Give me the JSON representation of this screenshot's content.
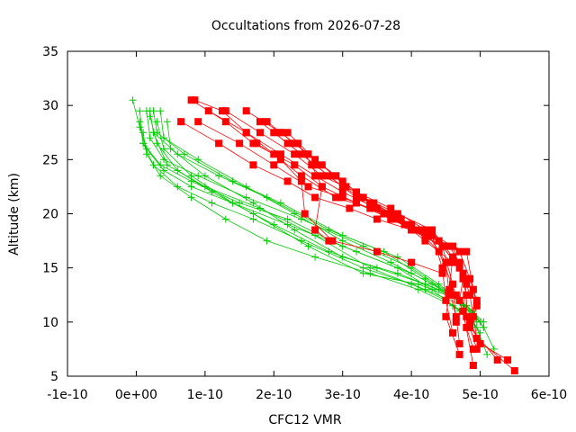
{
  "chart_data": {
    "type": "line",
    "title": "Occultations from 2026-07-28",
    "xlabel": "CFC12 VMR",
    "ylabel": "Altitude (km)",
    "xlim": [
      -1e-10,
      6e-10
    ],
    "ylim": [
      5,
      35
    ],
    "x_ticks": [
      -1e-10,
      0,
      1e-10,
      2e-10,
      3e-10,
      4e-10,
      5e-10,
      6e-10
    ],
    "x_tick_labels": [
      "-1e-10",
      "0e+00",
      "1e-10",
      "2e-10",
      "3e-10",
      "4e-10",
      "5e-10",
      "6e-10"
    ],
    "y_ticks": [
      5,
      10,
      15,
      20,
      25,
      30,
      35
    ],
    "y_tick_labels": [
      "5",
      "10",
      "15",
      "20",
      "25",
      "30",
      "35"
    ],
    "grid": false,
    "colors": {
      "red": "#ff0000",
      "green": "#00cc00"
    },
    "series": [
      {
        "color": "red",
        "marker": "square",
        "x": [
          8e-11,
          1.3e-10,
          1.7e-10,
          2.3e-10,
          2.7e-10,
          3.2e-10,
          3.7e-10,
          4.2e-10,
          4.7e-10,
          4.85e-10,
          4.95e-10,
          4.85e-10,
          5e-10,
          5.4e-10
        ],
        "y": [
          30.5,
          28.5,
          26.5,
          24.5,
          22.5,
          21.0,
          19.5,
          18.0,
          16.5,
          14.0,
          12.0,
          10.0,
          8.0,
          6.5
        ]
      },
      {
        "color": "red",
        "marker": "square",
        "x": [
          8.5e-11,
          1.25e-10,
          1.6e-10,
          2e-10,
          2.4e-10,
          2.9e-10,
          3.4e-10,
          3.9e-10,
          4.45e-10,
          4.75e-10,
          4.85e-10,
          4.9e-10,
          4.95e-10,
          5.5e-10
        ],
        "y": [
          30.5,
          29.5,
          27.5,
          25.5,
          23.5,
          21.5,
          20.5,
          19.0,
          17.0,
          14.5,
          12.5,
          10.5,
          8.5,
          5.5
        ]
      },
      {
        "color": "red",
        "marker": "square",
        "x": [
          1.05e-10,
          1.6e-10,
          2.1e-10,
          2.6e-10,
          3e-10,
          3.5e-10,
          4e-10,
          4.4e-10,
          4.8e-10,
          4.9e-10,
          4.95e-10,
          4.85e-10,
          5.25e-10
        ],
        "y": [
          29.5,
          27.5,
          25.5,
          23.5,
          22.0,
          20.5,
          19.0,
          17.5,
          16.5,
          13.0,
          11.5,
          9.5,
          6.5
        ]
      },
      {
        "color": "red",
        "marker": "square",
        "x": [
          6.5e-11,
          1.2e-10,
          1.7e-10,
          2.2e-10,
          2.6e-10,
          3.1e-10,
          3.5e-10,
          4e-10,
          4.45e-10,
          4.7e-10,
          4.8e-10,
          4.8e-10,
          4.95e-10
        ],
        "y": [
          28.5,
          26.5,
          24.5,
          23.0,
          21.5,
          20.5,
          19.5,
          18.5,
          17.0,
          15.0,
          12.5,
          10.5,
          7.5
        ]
      },
      {
        "color": "red",
        "marker": "square",
        "x": [
          9e-11,
          1.5e-10,
          2e-10,
          2.5e-10,
          3e-10,
          3.6e-10,
          4.1e-10,
          4.55e-10,
          4.7e-10,
          4.8e-10,
          4.75e-10,
          4.9e-10
        ],
        "y": [
          28.5,
          26.5,
          24.5,
          22.5,
          21.5,
          20.0,
          18.5,
          17.0,
          15.5,
          13.5,
          11.0,
          6.0
        ]
      },
      {
        "color": "red",
        "marker": "square",
        "x": [
          1.3e-10,
          1.8e-10,
          2.3e-10,
          2.7e-10,
          3.2e-10,
          3.7e-10,
          4.2e-10,
          4.6e-10,
          4.75e-10,
          4.7e-10,
          4.8e-10,
          4.9e-10
        ],
        "y": [
          29.5,
          27.5,
          25.5,
          23.5,
          22.0,
          20.5,
          18.5,
          17.0,
          14.0,
          12.0,
          9.5,
          7.5
        ]
      },
      {
        "color": "red",
        "marker": "square",
        "x": [
          1.6e-10,
          2.1e-10,
          2.5e-10,
          2.9e-10,
          3.3e-10,
          3.8e-10,
          4.3e-10,
          4.6e-10,
          4.55e-10,
          4.65e-10,
          4.7e-10
        ],
        "y": [
          29.5,
          27.5,
          25.5,
          23.5,
          21.5,
          20.0,
          18.5,
          16.0,
          13.0,
          10.5,
          8.0
        ]
      },
      {
        "color": "red",
        "marker": "square",
        "x": [
          1.8e-10,
          2.2e-10,
          2.6e-10,
          3e-10,
          3.4e-10,
          3.8e-10,
          4.25e-10,
          4.5e-10,
          4.55e-10,
          4.5e-10,
          4.7e-10
        ],
        "y": [
          28.5,
          26.5,
          24.5,
          22.5,
          21.0,
          19.5,
          18.0,
          15.5,
          12.5,
          10.5,
          7.0
        ]
      },
      {
        "color": "red",
        "marker": "square",
        "x": [
          1.9e-10,
          2.3e-10,
          2.7e-10,
          3.05e-10,
          3.45e-10,
          3.85e-10,
          4.3e-10,
          4.45e-10,
          4.5e-10,
          4.6e-10
        ],
        "y": [
          28.5,
          26.5,
          24.5,
          22.5,
          21.0,
          19.5,
          18.0,
          15.0,
          12.0,
          9.0
        ]
      },
      {
        "color": "red",
        "marker": "square",
        "x": [
          2e-10,
          2.4e-10,
          2.8e-10,
          3.2e-10,
          3.6e-10,
          4e-10,
          4.45e-10,
          4.6e-10,
          4.65e-10
        ],
        "y": [
          27.5,
          25.5,
          23.5,
          21.5,
          20.0,
          18.5,
          17.0,
          13.5,
          10.0
        ]
      },
      {
        "color": "red",
        "marker": "square",
        "x": [
          2.1e-10,
          2.5e-10,
          2.9e-10,
          3.3e-10,
          3.7e-10,
          4.1e-10,
          4.4e-10,
          4.65e-10
        ],
        "y": [
          27.5,
          25.5,
          23.5,
          21.5,
          20.0,
          18.5,
          16.5,
          12.5
        ]
      },
      {
        "color": "red",
        "marker": "square",
        "x": [
          2.2e-10,
          2.6e-10,
          3e-10,
          3.4e-10,
          3.8e-10,
          4.2e-10,
          4.6e-10
        ],
        "y": [
          27.5,
          25.0,
          23.0,
          21.0,
          19.5,
          17.5,
          15.5
        ]
      },
      {
        "color": "red",
        "marker": "square",
        "x": [
          1.75e-10,
          2.1e-10,
          2.4e-10,
          2.45e-10,
          2.85e-10,
          3.5e-10,
          4e-10,
          4.45e-10
        ],
        "y": [
          26.5,
          25.0,
          23.0,
          20.0,
          17.5,
          16.5,
          15.5,
          14.5
        ]
      },
      {
        "color": "red",
        "marker": "square",
        "x": [
          2.35e-10,
          2.55e-10,
          2.7e-10,
          2.6e-10,
          2.8e-10
        ],
        "y": [
          26.5,
          24.5,
          22.5,
          18.5,
          17.5
        ]
      },
      {
        "color": "green",
        "marker": "plus",
        "x": [
          -5e-12,
          5e-12,
          1.5e-11,
          4e-11,
          8e-11,
          1.4e-10,
          2.2e-10,
          3.2e-10,
          4e-10,
          4.6e-10,
          4.9e-10,
          5.05e-10,
          5.2e-10
        ],
        "y": [
          30.5,
          28.0,
          26.0,
          24.0,
          22.5,
          21.0,
          19.0,
          16.5,
          14.5,
          12.5,
          11.0,
          9.5,
          7.5
        ]
      },
      {
        "color": "green",
        "marker": "plus",
        "x": [
          5e-12,
          1e-11,
          3.5e-11,
          8e-11,
          1.5e-10,
          2.2e-10,
          3e-10,
          3.8e-10,
          4.3e-10,
          4.7e-10,
          4.95e-10,
          5.1e-10
        ],
        "y": [
          29.5,
          26.5,
          24.5,
          23.0,
          21.0,
          19.5,
          17.0,
          15.0,
          13.0,
          11.0,
          9.5,
          7.0
        ]
      },
      {
        "color": "green",
        "marker": "plus",
        "x": [
          5e-12,
          1e-11,
          2.5e-11,
          6e-11,
          1.1e-10,
          1.7e-10,
          2.4e-10,
          3.3e-10,
          4e-10,
          4.5e-10,
          4.85e-10,
          5e-10
        ],
        "y": [
          28.5,
          26.5,
          24.5,
          22.5,
          21.0,
          19.5,
          17.5,
          15.0,
          13.5,
          12.0,
          10.5,
          9.0
        ]
      },
      {
        "color": "green",
        "marker": "plus",
        "x": [
          1.5e-11,
          2e-11,
          4e-11,
          9e-11,
          1.6e-10,
          2.4e-10,
          3.3e-10,
          4e-10,
          4.6e-10,
          4.9e-10
        ],
        "y": [
          29.5,
          27.0,
          25.0,
          23.5,
          21.5,
          19.5,
          17.0,
          15.0,
          12.5,
          10.5
        ]
      },
      {
        "color": "green",
        "marker": "plus",
        "x": [
          2e-11,
          2.5e-11,
          6e-11,
          1.2e-10,
          1.9e-10,
          2.8e-10,
          3.6e-10,
          4.2e-10,
          4.7e-10,
          5e-10
        ],
        "y": [
          29.5,
          27.5,
          25.5,
          23.5,
          21.5,
          18.5,
          16.5,
          14.0,
          12.0,
          10.0
        ]
      },
      {
        "color": "green",
        "marker": "plus",
        "x": [
          2.5e-11,
          3e-11,
          7e-11,
          1.4e-10,
          2.1e-10,
          3e-10,
          3.8e-10,
          4.4e-10,
          4.8e-10,
          5.05e-10
        ],
        "y": [
          29.5,
          27.5,
          25.5,
          23.0,
          21.0,
          18.0,
          16.0,
          13.5,
          11.5,
          9.5
        ]
      },
      {
        "color": "green",
        "marker": "plus",
        "x": [
          3.5e-11,
          4e-11,
          9e-11,
          1.6e-10,
          2.3e-10,
          3e-10,
          3.7e-10,
          4.3e-10,
          4.8e-10,
          5.05e-10
        ],
        "y": [
          29.5,
          27.0,
          25.0,
          22.5,
          20.0,
          17.5,
          15.5,
          13.5,
          11.5,
          10.0
        ]
      },
      {
        "color": "green",
        "marker": "plus",
        "x": [
          1e-11,
          1.5e-11,
          3.5e-11,
          8e-11,
          1.3e-10,
          1.9e-10,
          2.6e-10,
          3.4e-10,
          4.1e-10,
          4.6e-10,
          4.95e-10
        ],
        "y": [
          27.5,
          25.5,
          23.5,
          21.5,
          19.5,
          17.5,
          16.0,
          14.5,
          13.0,
          11.5,
          10.0
        ]
      },
      {
        "color": "green",
        "marker": "plus",
        "x": [
          3e-11,
          4e-11,
          8e-11,
          1.4e-10,
          2e-10,
          2.8e-10,
          3.5e-10,
          4.2e-10,
          4.7e-10,
          4.9e-10
        ],
        "y": [
          28.5,
          26.0,
          23.5,
          21.0,
          19.0,
          16.5,
          15.0,
          13.5,
          12.0,
          10.5
        ]
      },
      {
        "color": "green",
        "marker": "plus",
        "x": [
          4.5e-11,
          5e-11,
          1e-10,
          1.7e-10,
          2.3e-10,
          3e-10,
          3.8e-10,
          4.4e-10,
          4.8e-10
        ],
        "y": [
          28.5,
          26.0,
          23.5,
          21.0,
          18.5,
          16.0,
          14.5,
          13.0,
          11.5
        ]
      },
      {
        "color": "green",
        "marker": "plus",
        "x": [
          2e-11,
          3e-11,
          6e-11,
          1.1e-10,
          1.7e-10,
          2.5e-10,
          3.3e-10,
          4.1e-10,
          4.7e-10
        ],
        "y": [
          29.0,
          26.5,
          24.0,
          22.0,
          20.0,
          17.0,
          14.5,
          13.5,
          12.0
        ]
      },
      {
        "color": "green",
        "marker": "plus",
        "x": [
          2.5e-11,
          4.5e-11,
          1e-10,
          1.8e-10,
          2.6e-10,
          3.4e-10,
          4.2e-10,
          4.75e-10
        ],
        "y": [
          27.5,
          24.5,
          22.5,
          20.5,
          18.0,
          15.0,
          13.0,
          11.5
        ]
      }
    ]
  }
}
